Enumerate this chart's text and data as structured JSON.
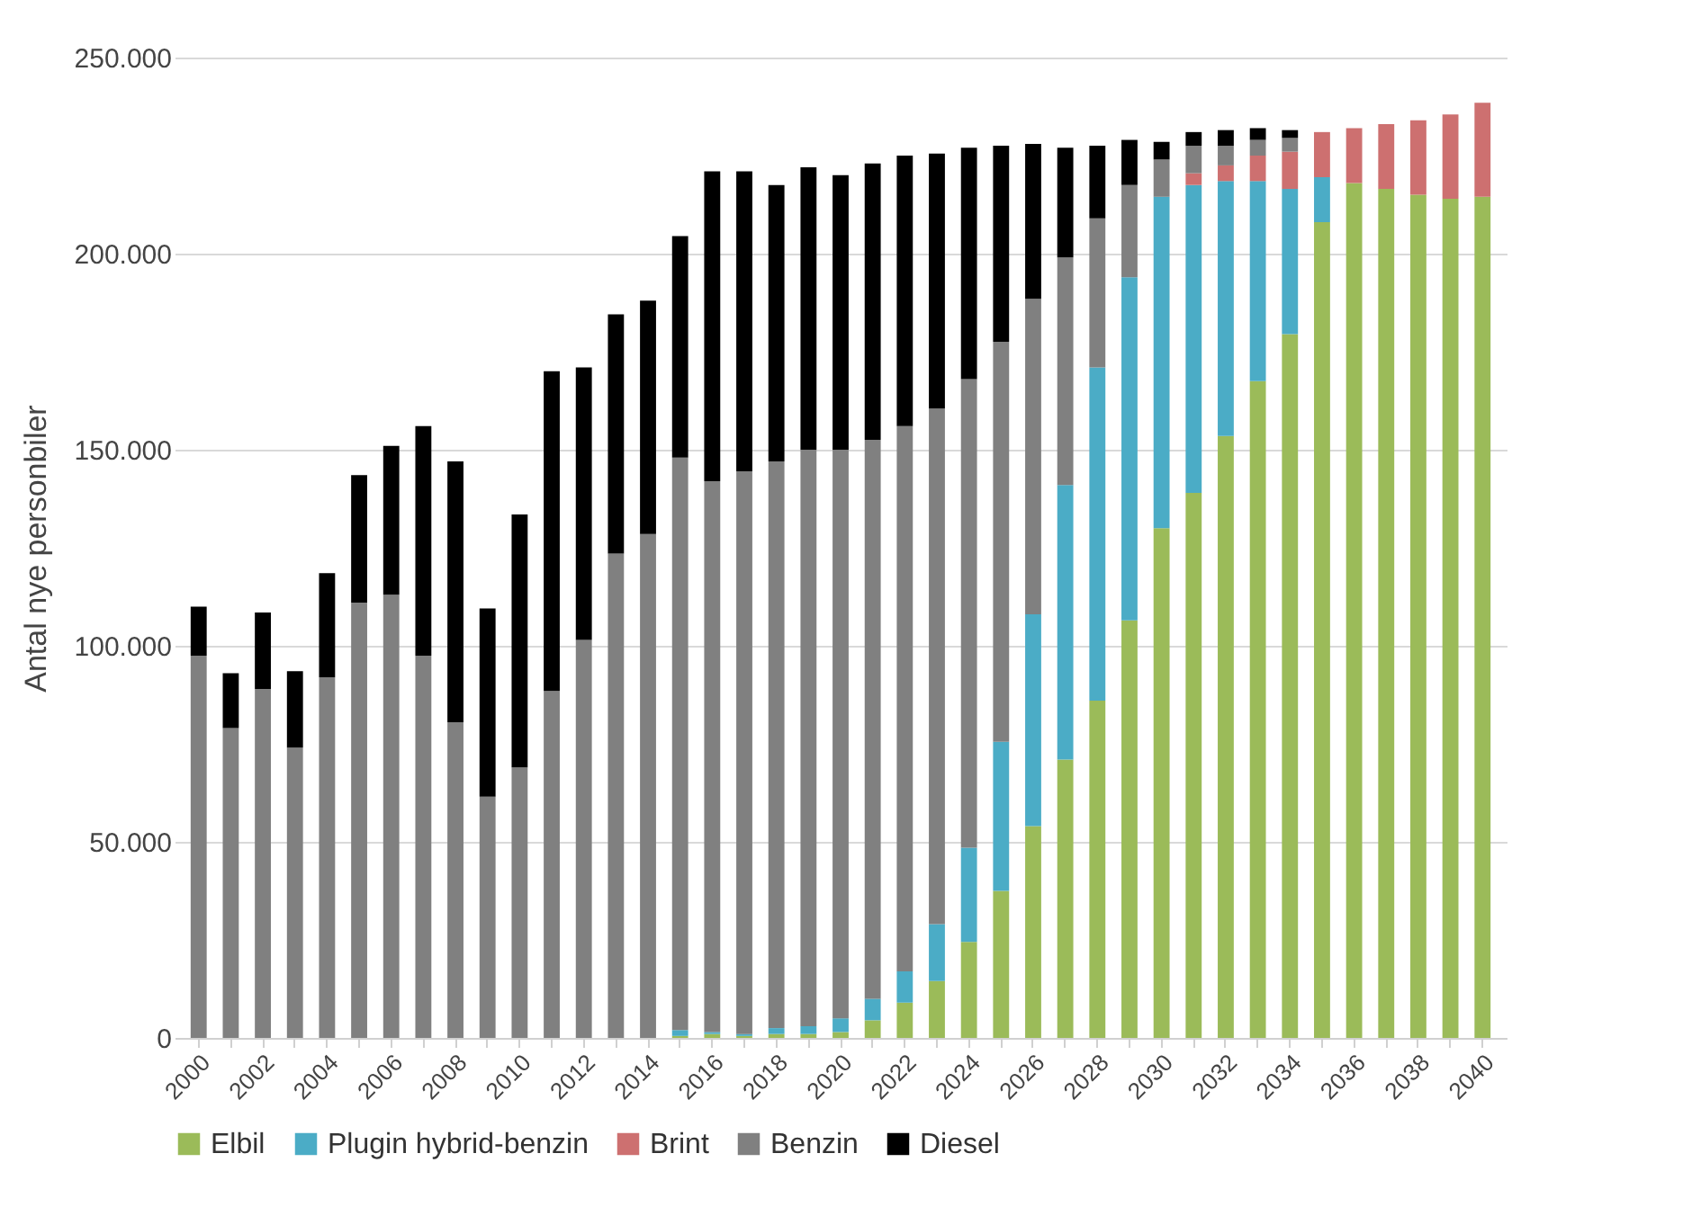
{
  "chart_data": {
    "type": "bar",
    "stacked": true,
    "ylabel": "Antal nye personbiler",
    "categories": [
      "2000",
      null,
      "2002",
      null,
      "2004",
      null,
      "2006",
      null,
      "2008",
      null,
      "2010",
      null,
      "2012",
      null,
      "2014",
      null,
      "2016",
      null,
      "2018",
      null,
      "2020",
      null,
      "2022",
      null,
      "2024",
      null,
      "2026",
      null,
      "2028",
      null,
      "2030",
      null,
      "2032",
      null,
      "2034",
      null,
      "2036",
      null,
      "2038",
      null,
      "2040"
    ],
    "series": [
      {
        "name": "Elbil",
        "color": "#9bbb59",
        "values": [
          0,
          0,
          0,
          0,
          0,
          0,
          0,
          0,
          0,
          0,
          0,
          0,
          0,
          0,
          0,
          500,
          1000,
          500,
          1000,
          1000,
          1500,
          4500,
          9000,
          14500,
          24500,
          37500,
          54000,
          71000,
          86000,
          106500,
          130000,
          139000,
          153500,
          167500,
          179500,
          208000,
          218000,
          216500,
          215000,
          214000,
          214500
        ]
      },
      {
        "name": "Plugin hybrid-benzin",
        "color": "#4bacc6",
        "values": [
          0,
          0,
          0,
          0,
          0,
          0,
          0,
          0,
          0,
          0,
          0,
          0,
          0,
          0,
          0,
          1500,
          500,
          500,
          1500,
          2000,
          3500,
          5500,
          8000,
          14500,
          24000,
          38000,
          54000,
          70000,
          85000,
          87500,
          84500,
          78500,
          65000,
          51000,
          37000,
          11500,
          0,
          0,
          0,
          0,
          0
        ]
      },
      {
        "name": "Brint",
        "color": "#cd7070",
        "values": [
          0,
          0,
          0,
          0,
          0,
          0,
          0,
          0,
          0,
          0,
          0,
          0,
          0,
          0,
          0,
          0,
          0,
          0,
          0,
          0,
          0,
          0,
          0,
          0,
          0,
          0,
          0,
          0,
          0,
          0,
          0,
          3000,
          4000,
          6500,
          9500,
          11500,
          14000,
          16500,
          19000,
          21500,
          24000
        ]
      },
      {
        "name": "Benzin",
        "color": "#808080",
        "values": [
          97500,
          79000,
          89000,
          74000,
          92000,
          111000,
          113000,
          97500,
          80500,
          61500,
          69000,
          88500,
          101500,
          123500,
          128500,
          146000,
          140500,
          143500,
          144500,
          147000,
          145000,
          142500,
          139000,
          131500,
          119500,
          102000,
          80500,
          58000,
          38000,
          23500,
          9500,
          7000,
          5000,
          4000,
          3500,
          0,
          0,
          0,
          0,
          0,
          0
        ]
      },
      {
        "name": "Diesel",
        "color": "#000000",
        "values": [
          12500,
          14000,
          19500,
          19500,
          26500,
          32500,
          38000,
          58500,
          66500,
          48000,
          64500,
          81500,
          69500,
          61000,
          59500,
          56500,
          79000,
          76500,
          70500,
          72000,
          70000,
          70500,
          69000,
          65000,
          59000,
          50000,
          39500,
          28000,
          18500,
          11500,
          4500,
          3500,
          4000,
          3000,
          2000,
          0,
          0,
          0,
          0,
          0,
          0
        ]
      }
    ],
    "ylim": [
      0,
      250000
    ],
    "yticks": [
      {
        "value": 0,
        "label": "0"
      },
      {
        "value": 50000,
        "label": "50.000"
      },
      {
        "value": 100000,
        "label": "100.000"
      },
      {
        "value": 150000,
        "label": "150.000"
      },
      {
        "value": 200000,
        "label": "200.000"
      },
      {
        "value": 250000,
        "label": "250.000"
      }
    ],
    "grid": "y",
    "legend": "bottom"
  }
}
